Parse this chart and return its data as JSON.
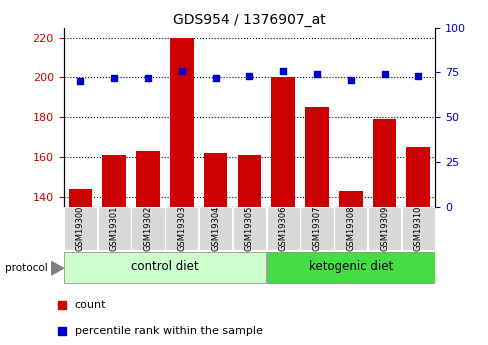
{
  "title": "GDS954 / 1376907_at",
  "samples": [
    "GSM19300",
    "GSM19301",
    "GSM19302",
    "GSM19303",
    "GSM19304",
    "GSM19305",
    "GSM19306",
    "GSM19307",
    "GSM19308",
    "GSM19309",
    "GSM19310"
  ],
  "counts": [
    144,
    161,
    163,
    220,
    162,
    161,
    200,
    185,
    143,
    179,
    165
  ],
  "percentiles": [
    70,
    72,
    72,
    76,
    72,
    73,
    76,
    74,
    71,
    74,
    73
  ],
  "ylim_left": [
    135,
    225
  ],
  "ylim_right": [
    0,
    100
  ],
  "yticks_left": [
    140,
    160,
    180,
    200,
    220
  ],
  "yticks_right": [
    0,
    25,
    50,
    75,
    100
  ],
  "bar_color": "#cc0000",
  "dot_color": "#0000cc",
  "groups": [
    {
      "label": "control diet",
      "indices": [
        0,
        1,
        2,
        3,
        4,
        5
      ],
      "color": "#ccffcc"
    },
    {
      "label": "ketogenic diet",
      "indices": [
        6,
        7,
        8,
        9,
        10
      ],
      "color": "#44dd44"
    }
  ],
  "protocol_label": "protocol",
  "sample_bg_color": "#d8d8d8",
  "title_fontsize": 10,
  "tick_fontsize": 8,
  "sample_fontsize": 6,
  "group_fontsize": 8.5,
  "legend_fontsize": 8
}
